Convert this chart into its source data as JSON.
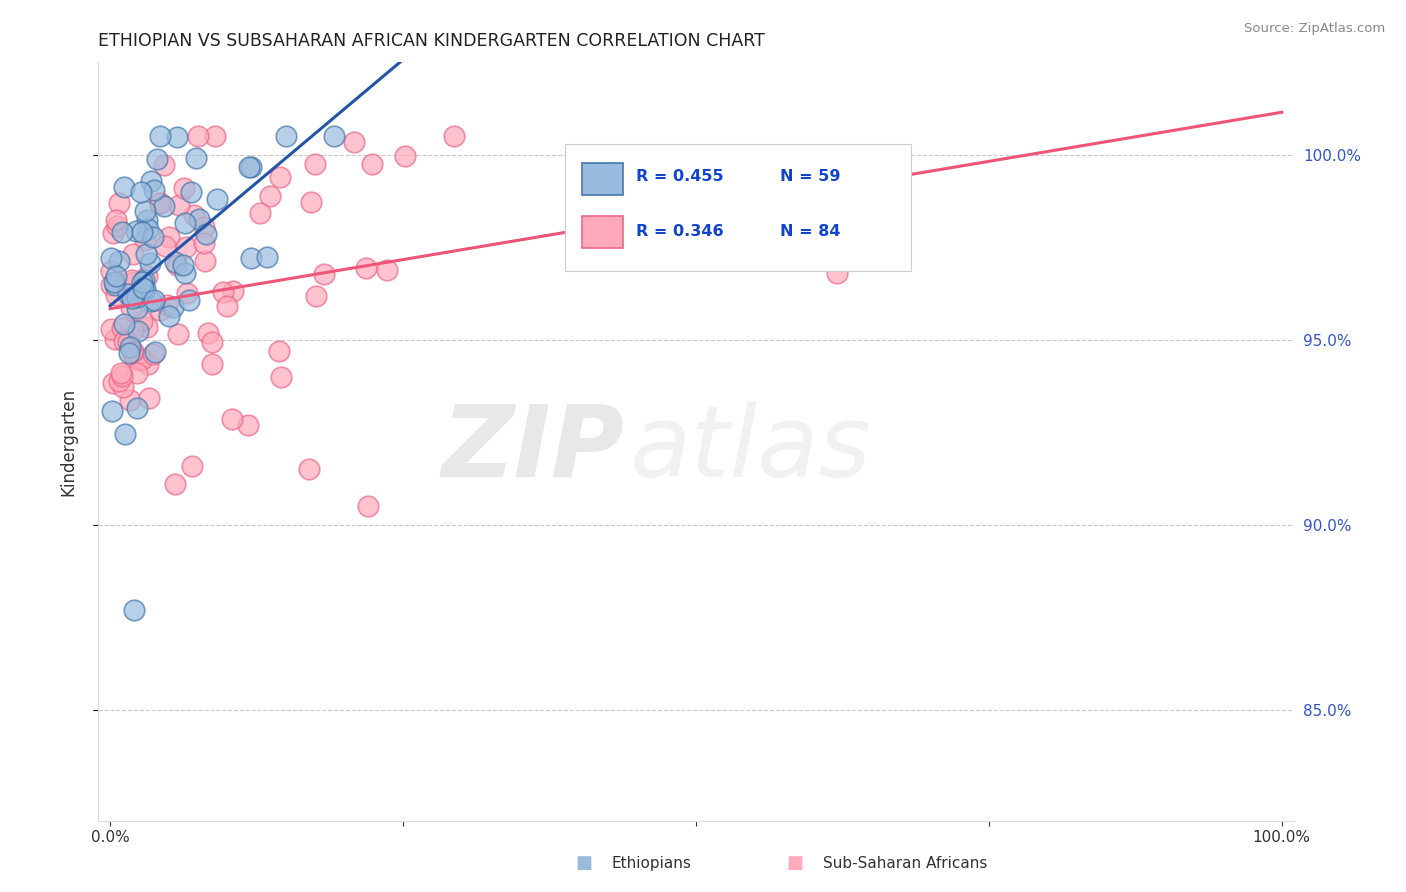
{
  "title": "ETHIOPIAN VS SUBSAHARAN AFRICAN KINDERGARTEN CORRELATION CHART",
  "source": "Source: ZipAtlas.com",
  "ylabel": "Kindergarten",
  "r_ethiopians": 0.455,
  "n_ethiopians": 59,
  "r_subsaharan": 0.346,
  "n_subsaharan": 84,
  "color_blue_face": "#99BBDD",
  "color_blue_edge": "#4477AA",
  "color_pink_face": "#FFAABB",
  "color_pink_edge": "#EE6688",
  "color_blue_line": "#2255AA",
  "color_pink_line": "#EE5577",
  "legend_ethiopians": "Ethiopians",
  "legend_subsaharan": "Sub-Saharan Africans",
  "watermark_zip": "ZIP",
  "watermark_atlas": "atlas",
  "xlim": [
    0.0,
    1.0
  ],
  "ylim": [
    0.82,
    1.025
  ],
  "yticks": [
    0.85,
    0.9,
    0.95,
    1.0
  ],
  "ytick_labels": [
    "85.0%",
    "90.0%",
    "95.0%",
    "100.0%"
  ],
  "xtick_labels_left": "0.0%",
  "xtick_labels_right": "100.0%"
}
